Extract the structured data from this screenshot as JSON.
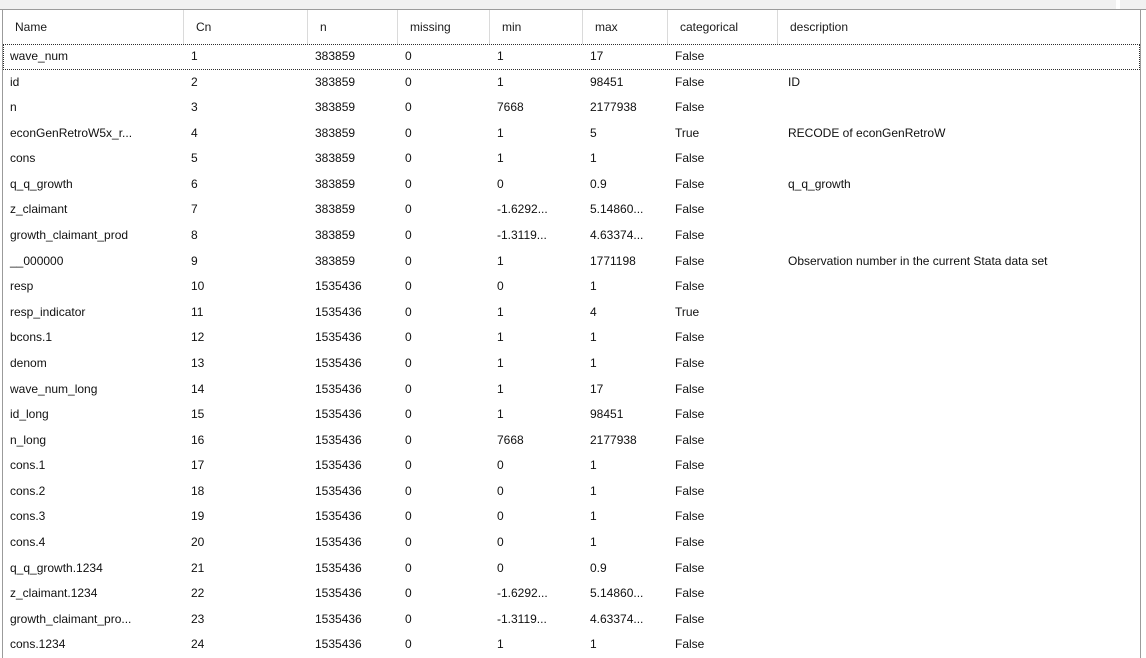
{
  "colors": {
    "grid_border": "#9b9b9b",
    "header_separator": "#dadada",
    "top_strip": "#f1f1f1",
    "row_background": "#ffffff",
    "text": "#101010",
    "focus_rect": "#2e2e2e"
  },
  "table": {
    "columns": [
      {
        "key": "name",
        "label": "Name"
      },
      {
        "key": "cn",
        "label": "Cn"
      },
      {
        "key": "n",
        "label": "n"
      },
      {
        "key": "missing",
        "label": "missing"
      },
      {
        "key": "min",
        "label": "min"
      },
      {
        "key": "max",
        "label": "max"
      },
      {
        "key": "categorical",
        "label": "categorical"
      },
      {
        "key": "description",
        "label": "description"
      }
    ],
    "focused_row_index": 0,
    "rows": [
      [
        "wave_num",
        "1",
        "383859",
        "0",
        "1",
        "17",
        "False",
        ""
      ],
      [
        "id",
        "2",
        "383859",
        "0",
        "1",
        "98451",
        "False",
        "ID"
      ],
      [
        "n",
        "3",
        "383859",
        "0",
        "7668",
        "2177938",
        "False",
        ""
      ],
      [
        "econGenRetroW5x_r...",
        "4",
        "383859",
        "0",
        "1",
        "5",
        "True",
        "RECODE of econGenRetroW"
      ],
      [
        "cons",
        "5",
        "383859",
        "0",
        "1",
        "1",
        "False",
        ""
      ],
      [
        "q_q_growth",
        "6",
        "383859",
        "0",
        "0",
        "0.9",
        "False",
        "q_q_growth"
      ],
      [
        "z_claimant",
        "7",
        "383859",
        "0",
        "-1.6292...",
        "5.14860...",
        "False",
        ""
      ],
      [
        "growth_claimant_prod",
        "8",
        "383859",
        "0",
        "-1.3119...",
        "4.63374...",
        "False",
        ""
      ],
      [
        "__000000",
        "9",
        "383859",
        "0",
        "1",
        "1771198",
        "False",
        "Observation number in the current Stata data set"
      ],
      [
        "resp",
        "10",
        "1535436",
        "0",
        "0",
        "1",
        "False",
        ""
      ],
      [
        "resp_indicator",
        "11",
        "1535436",
        "0",
        "1",
        "4",
        "True",
        ""
      ],
      [
        "bcons.1",
        "12",
        "1535436",
        "0",
        "1",
        "1",
        "False",
        ""
      ],
      [
        "denom",
        "13",
        "1535436",
        "0",
        "1",
        "1",
        "False",
        ""
      ],
      [
        "wave_num_long",
        "14",
        "1535436",
        "0",
        "1",
        "17",
        "False",
        ""
      ],
      [
        "id_long",
        "15",
        "1535436",
        "0",
        "1",
        "98451",
        "False",
        ""
      ],
      [
        "n_long",
        "16",
        "1535436",
        "0",
        "7668",
        "2177938",
        "False",
        ""
      ],
      [
        "cons.1",
        "17",
        "1535436",
        "0",
        "0",
        "1",
        "False",
        ""
      ],
      [
        "cons.2",
        "18",
        "1535436",
        "0",
        "0",
        "1",
        "False",
        ""
      ],
      [
        "cons.3",
        "19",
        "1535436",
        "0",
        "0",
        "1",
        "False",
        ""
      ],
      [
        "cons.4",
        "20",
        "1535436",
        "0",
        "0",
        "1",
        "False",
        ""
      ],
      [
        "q_q_growth.1234",
        "21",
        "1535436",
        "0",
        "0",
        "0.9",
        "False",
        ""
      ],
      [
        "z_claimant.1234",
        "22",
        "1535436",
        "0",
        "-1.6292...",
        "5.14860...",
        "False",
        ""
      ],
      [
        "growth_claimant_pro...",
        "23",
        "1535436",
        "0",
        "-1.3119...",
        "4.63374...",
        "False",
        ""
      ],
      [
        "cons.1234",
        "24",
        "1535436",
        "0",
        "1",
        "1",
        "False",
        ""
      ]
    ]
  }
}
